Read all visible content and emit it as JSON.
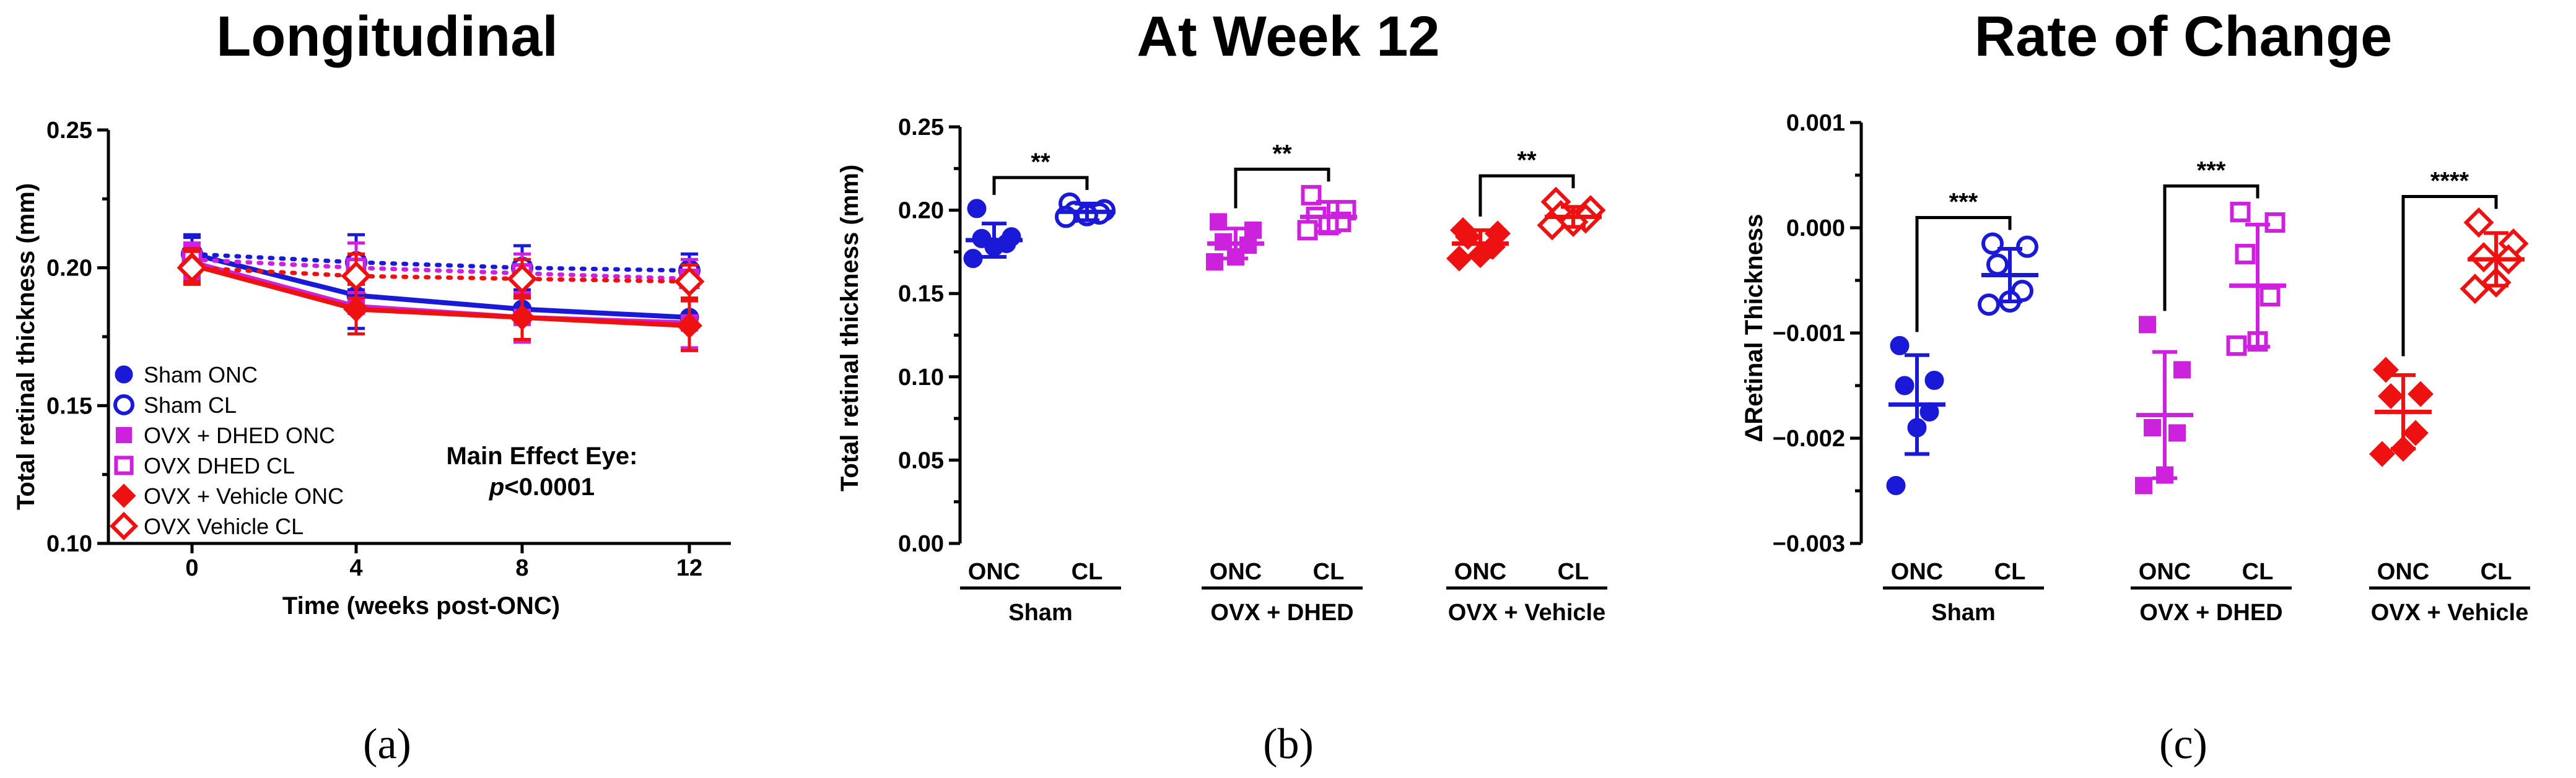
{
  "colors": {
    "sham": "#1a1ad6",
    "dhed": "#cc22dd",
    "vehicle": "#ee1111"
  },
  "chart_data": [
    {
      "type": "line",
      "panel_label": "(a)",
      "title": "Longitudinal",
      "xlabel": "Time (weeks post-ONC)",
      "ylabel": "Total retinal thickness (mm)",
      "x": [
        0,
        4,
        8,
        12
      ],
      "x_ticks": [
        "0",
        "4",
        "8",
        "12"
      ],
      "ylim": [
        0.1,
        0.25
      ],
      "y_ticks": [
        "0.10",
        "0.15",
        "0.20",
        "0.25"
      ],
      "annotation": {
        "line1": "Main Effect Eye:",
        "p_label": "p",
        "p_value": "<0.0001"
      },
      "series": [
        {
          "name": "Sham ONC",
          "color_key": "sham",
          "marker": "circle",
          "filled": true,
          "dashed": false,
          "values": [
            0.205,
            0.19,
            0.185,
            0.182
          ],
          "errors": [
            0.007,
            0.012,
            0.011,
            0.012
          ]
        },
        {
          "name": "Sham CL",
          "color_key": "sham",
          "marker": "circle",
          "filled": false,
          "dashed": true,
          "values": [
            0.205,
            0.202,
            0.2,
            0.199
          ],
          "errors": [
            0.006,
            0.01,
            0.008,
            0.006
          ]
        },
        {
          "name": "OVX + DHED ONC",
          "color_key": "dhed",
          "marker": "square",
          "filled": true,
          "dashed": false,
          "values": [
            0.202,
            0.186,
            0.182,
            0.18
          ],
          "errors": [
            0.006,
            0.01,
            0.009,
            0.009
          ]
        },
        {
          "name": "OVX DHED CL",
          "color_key": "dhed",
          "marker": "square",
          "filled": false,
          "dashed": true,
          "values": [
            0.203,
            0.2,
            0.198,
            0.196
          ],
          "errors": [
            0.006,
            0.009,
            0.007,
            0.007
          ]
        },
        {
          "name": "OVX + Vehicle ONC",
          "color_key": "vehicle",
          "marker": "diamond",
          "filled": true,
          "dashed": false,
          "values": [
            0.201,
            0.185,
            0.182,
            0.179
          ],
          "errors": [
            0.006,
            0.009,
            0.008,
            0.009
          ]
        },
        {
          "name": "OVX Vehicle CL",
          "color_key": "vehicle",
          "marker": "diamond",
          "filled": false,
          "dashed": true,
          "values": [
            0.2,
            0.197,
            0.196,
            0.195
          ],
          "errors": [
            0.006,
            0.008,
            0.007,
            0.006
          ]
        }
      ]
    },
    {
      "type": "scatter",
      "panel_label": "(b)",
      "title": "At Week 12",
      "ylabel": "Total retinal thickness (mm)",
      "ylim": [
        0.0,
        0.25
      ],
      "y_ticks": [
        "0.00",
        "0.05",
        "0.10",
        "0.15",
        "0.20",
        "0.25"
      ],
      "groups": [
        {
          "name": "Sham",
          "color_key": "sham",
          "marker": "circle",
          "onc": {
            "label": "ONC",
            "points": [
              0.201,
              0.184,
              0.183,
              0.18,
              0.178,
              0.171
            ],
            "mean": 0.182,
            "sd": 0.01
          },
          "cl": {
            "label": "CL",
            "points": [
              0.204,
              0.2,
              0.199,
              0.198,
              0.197,
              0.196
            ],
            "mean": 0.199,
            "sd": 0.005
          },
          "sig": "**"
        },
        {
          "name": "OVX + DHED",
          "color_key": "dhed",
          "marker": "square",
          "onc": {
            "label": "ONC",
            "points": [
              0.193,
              0.188,
              0.181,
              0.179,
              0.172,
              0.169
            ],
            "mean": 0.18,
            "sd": 0.009
          },
          "cl": {
            "label": "CL",
            "points": [
              0.209,
              0.2,
              0.196,
              0.193,
              0.191,
              0.188
            ],
            "mean": 0.196,
            "sd": 0.009
          },
          "sig": "**"
        },
        {
          "name": "OVX + Vehicle",
          "color_key": "vehicle",
          "marker": "diamond",
          "onc": {
            "label": "ONC",
            "points": [
              0.188,
              0.186,
              0.184,
              0.178,
              0.173,
              0.171
            ],
            "mean": 0.18,
            "sd": 0.008
          },
          "cl": {
            "label": "CL",
            "points": [
              0.205,
              0.2,
              0.197,
              0.195,
              0.193,
              0.191
            ],
            "mean": 0.196,
            "sd": 0.006
          },
          "sig": "**"
        }
      ]
    },
    {
      "type": "scatter",
      "panel_label": "(c)",
      "title": "Rate of Change",
      "ylabel": "ΔRetinal Thickness",
      "ylim": [
        -0.003,
        0.001
      ],
      "y_ticks": [
        "−0.003",
        "−0.002",
        "−0.001",
        "0.000",
        "0.001"
      ],
      "groups": [
        {
          "name": "Sham",
          "color_key": "sham",
          "marker": "circle",
          "onc": {
            "label": "ONC",
            "points": [
              -0.00112,
              -0.00145,
              -0.0015,
              -0.00175,
              -0.0019,
              -0.00245
            ],
            "mean": -0.00168,
            "sd": 0.00047
          },
          "cl": {
            "label": "CL",
            "points": [
              -0.00015,
              -0.00018,
              -0.00035,
              -0.0006,
              -0.0007,
              -0.00073
            ],
            "mean": -0.00045,
            "sd": 0.00025
          },
          "sig": "***"
        },
        {
          "name": "OVX + DHED",
          "color_key": "dhed",
          "marker": "square",
          "onc": {
            "label": "ONC",
            "points": [
              -0.00092,
              -0.00135,
              -0.0019,
              -0.00195,
              -0.00235,
              -0.00245
            ],
            "mean": -0.00178,
            "sd": 0.0006
          },
          "cl": {
            "label": "CL",
            "points": [
              0.00015,
              5e-05,
              -0.00025,
              -0.00065,
              -0.00108,
              -0.00112
            ],
            "mean": -0.00055,
            "sd": 0.00058
          },
          "sig": "***"
        },
        {
          "name": "OVX + Vehicle",
          "color_key": "vehicle",
          "marker": "diamond",
          "onc": {
            "label": "ONC",
            "points": [
              -0.00135,
              -0.00158,
              -0.0016,
              -0.00195,
              -0.0021,
              -0.00215
            ],
            "mean": -0.00175,
            "sd": 0.00035
          },
          "cl": {
            "label": "CL",
            "points": [
              5e-05,
              -0.00015,
              -0.00028,
              -0.0003,
              -0.00052,
              -0.00058
            ],
            "mean": -0.0003,
            "sd": 0.00025
          },
          "sig": "****"
        }
      ]
    }
  ]
}
